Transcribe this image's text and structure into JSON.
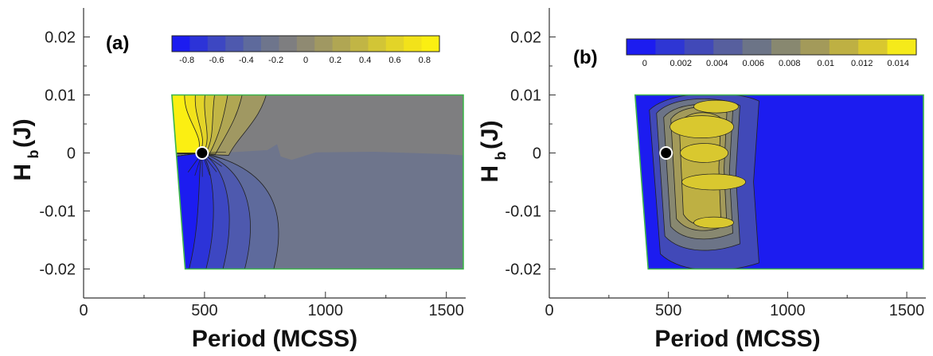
{
  "chart_data": [
    {
      "type": "heatmap",
      "panel_label": "(a)",
      "xlabel": "Period (MCSS)",
      "ylabel": "H",
      "ylabel_sub": "b",
      "ylabel_tail": "(J)",
      "xlim": [
        0,
        1580
      ],
      "ylim": [
        -0.025,
        0.025
      ],
      "xticks": [
        0,
        500,
        1000,
        1500
      ],
      "xtick_labels": [
        "0",
        "500",
        "1000",
        "1500"
      ],
      "yticks": [
        0.02,
        0.01,
        0,
        -0.01,
        -0.02
      ],
      "ytick_labels": [
        "0.02",
        "0.01",
        "0",
        "-0.01",
        "-0.02"
      ],
      "domain_polygon": [
        [
          365,
          0.01
        ],
        [
          1570,
          0.01
        ],
        [
          1570,
          -0.02
        ],
        [
          420,
          -0.02
        ]
      ],
      "marker": {
        "x": 490,
        "y": 0.0
      },
      "colorbar": {
        "range": [
          -0.9,
          0.9
        ],
        "ticks": [
          -0.8,
          -0.6,
          -0.4,
          -0.2,
          0,
          0.2,
          0.4,
          0.6,
          0.8
        ],
        "tick_labels": [
          "-0.8",
          "-0.6",
          "-0.4",
          "-0.2",
          "0",
          "0.2",
          "0.4",
          "0.6",
          "0.8"
        ],
        "colors": [
          "#1c1cf0",
          "#2c33d8",
          "#3d47c2",
          "#4e59ae",
          "#5e6a9c",
          "#6e758c",
          "#7e7e80",
          "#8f8a72",
          "#a09862",
          "#b0a653",
          "#c1b545",
          "#d2c536",
          "#e3d428",
          "#f2e21a",
          "#fbef12"
        ]
      }
    },
    {
      "type": "heatmap",
      "panel_label": "(b)",
      "xlabel": "Period (MCSS)",
      "ylabel": "H",
      "ylabel_sub": "b",
      "ylabel_tail": "(J)",
      "xlim": [
        0,
        1580
      ],
      "ylim": [
        -0.025,
        0.025
      ],
      "xticks": [
        0,
        500,
        1000,
        1500
      ],
      "xtick_labels": [
        "0",
        "500",
        "1000",
        "1500"
      ],
      "yticks": [
        0.02,
        0.01,
        0,
        -0.01,
        -0.02
      ],
      "ytick_labels": [
        "0.02",
        "0.01",
        "0",
        "-0.01",
        "-0.02"
      ],
      "domain_polygon": [
        [
          360,
          0.01
        ],
        [
          1570,
          0.01
        ],
        [
          1570,
          -0.02
        ],
        [
          415,
          -0.02
        ]
      ],
      "marker": {
        "x": 490,
        "y": 0.0
      },
      "colorbar": {
        "range": [
          -0.001,
          0.015
        ],
        "ticks": [
          0,
          0.002,
          0.004,
          0.006,
          0.008,
          0.01,
          0.012,
          0.014
        ],
        "tick_labels": [
          "0",
          "0.002",
          "0.004",
          "0.006",
          "0.008",
          "0.01",
          "0.012",
          "0.014"
        ],
        "colors": [
          "#1c1cf0",
          "#2e36d4",
          "#4149b8",
          "#575f9e",
          "#6c7487",
          "#888870",
          "#a39a5a",
          "#beb043",
          "#d9c82f",
          "#f5ea1a"
        ]
      }
    }
  ]
}
